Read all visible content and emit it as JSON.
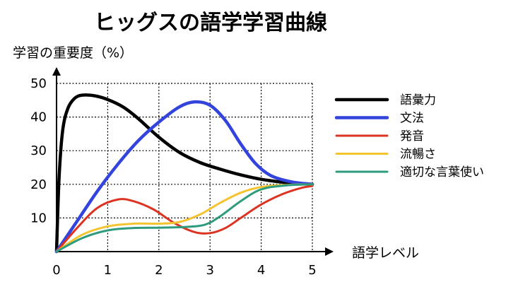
{
  "chart_data": {
    "type": "line",
    "title": "ヒッグスの語学学習曲線",
    "xlabel": "語学レベル",
    "ylabel": "学習の重要度（%）",
    "xlim": [
      0,
      5
    ],
    "ylim": [
      0,
      50
    ],
    "x_ticks": [
      "0",
      "1",
      "2",
      "3",
      "4",
      "5"
    ],
    "y_ticks": [
      "10",
      "20",
      "30",
      "40",
      "50"
    ],
    "grid": true,
    "legend_position": "right",
    "series": [
      {
        "name": "語彙力",
        "color": "#000000",
        "points": [
          [
            0,
            0
          ],
          [
            0.05,
            22
          ],
          [
            0.12,
            36
          ],
          [
            0.22,
            42.5
          ],
          [
            0.35,
            45.5
          ],
          [
            0.5,
            46.5
          ],
          [
            0.75,
            46.3
          ],
          [
            1.0,
            45.2
          ],
          [
            1.3,
            43
          ],
          [
            1.6,
            39.5
          ],
          [
            2.0,
            34
          ],
          [
            2.4,
            29.5
          ],
          [
            2.8,
            26.5
          ],
          [
            3.2,
            24.5
          ],
          [
            3.6,
            22.8
          ],
          [
            4.0,
            21.5
          ],
          [
            4.5,
            20.5
          ],
          [
            5.0,
            20
          ]
        ]
      },
      {
        "name": "文法",
        "color": "#3344dd",
        "points": [
          [
            0,
            0
          ],
          [
            0.4,
            9
          ],
          [
            0.8,
            18
          ],
          [
            1.2,
            26
          ],
          [
            1.6,
            33
          ],
          [
            2.0,
            38.5
          ],
          [
            2.4,
            43
          ],
          [
            2.7,
            44.5
          ],
          [
            3.0,
            43.5
          ],
          [
            3.3,
            39
          ],
          [
            3.6,
            32
          ],
          [
            3.9,
            26
          ],
          [
            4.2,
            22.5
          ],
          [
            4.6,
            20.7
          ],
          [
            5.0,
            20
          ]
        ]
      },
      {
        "name": "発音",
        "color": "#dd3322",
        "points": [
          [
            0,
            0
          ],
          [
            0.4,
            7
          ],
          [
            0.8,
            13
          ],
          [
            1.2,
            15.5
          ],
          [
            1.5,
            15
          ],
          [
            1.9,
            12.5
          ],
          [
            2.3,
            8.5
          ],
          [
            2.7,
            5.8
          ],
          [
            3.0,
            5.5
          ],
          [
            3.3,
            7
          ],
          [
            3.6,
            10
          ],
          [
            4.0,
            14
          ],
          [
            4.4,
            17
          ],
          [
            4.8,
            19
          ],
          [
            5.0,
            19.5
          ]
        ]
      },
      {
        "name": "流暢さ",
        "color": "#f4c430",
        "points": [
          [
            0,
            0
          ],
          [
            0.5,
            5
          ],
          [
            1.0,
            7.5
          ],
          [
            1.5,
            8.3
          ],
          [
            2.0,
            8.3
          ],
          [
            2.4,
            8.8
          ],
          [
            2.8,
            11
          ],
          [
            3.2,
            14.5
          ],
          [
            3.6,
            17.5
          ],
          [
            4.0,
            19.2
          ],
          [
            4.5,
            19.8
          ],
          [
            5.0,
            20
          ]
        ]
      },
      {
        "name": "適切な言葉使い",
        "color": "#2e9b7d",
        "points": [
          [
            0,
            0
          ],
          [
            0.5,
            4
          ],
          [
            1.0,
            6.3
          ],
          [
            1.5,
            7
          ],
          [
            2.0,
            7.1
          ],
          [
            2.5,
            7.3
          ],
          [
            2.9,
            8
          ],
          [
            3.2,
            10.5
          ],
          [
            3.6,
            15
          ],
          [
            4.0,
            18.5
          ],
          [
            4.5,
            19.7
          ],
          [
            5.0,
            20
          ]
        ]
      }
    ]
  }
}
